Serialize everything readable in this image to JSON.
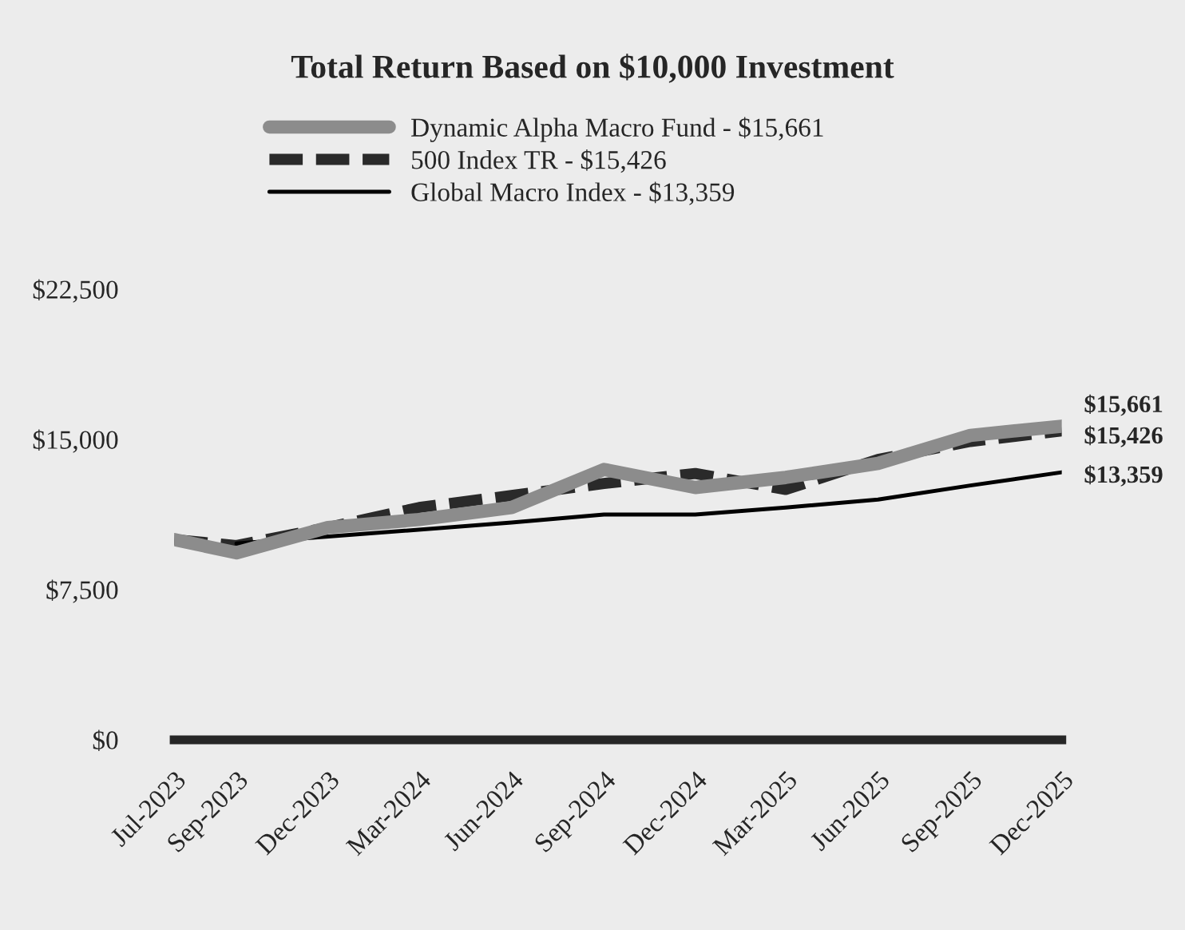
{
  "chart_data": {
    "type": "line",
    "title": "Total Return Based on $10,000 Investment",
    "x": [
      "2023-07",
      "2023-09",
      "2023-12",
      "2024-03",
      "2024-06",
      "2024-09",
      "2024-12",
      "2025-03",
      "2025-06",
      "2025-09",
      "2025-12"
    ],
    "series": [
      {
        "name": "Dynamic Alpha Macro Fund - $15,661",
        "color": "#8c8c8c",
        "line_style": "solid",
        "values": [
          10000,
          9340,
          10600,
          11000,
          11600,
          13500,
          12600,
          13100,
          13800,
          15200,
          15661
        ]
      },
      {
        "name": "500 Index TR - $15,426",
        "color": "#2a2a2a",
        "line_style": "dashed",
        "values": [
          10000,
          9700,
          10600,
          11600,
          12200,
          12800,
          13300,
          12500,
          14000,
          14900,
          15426
        ]
      },
      {
        "name": "Global Macro Index - $13,359",
        "color": "#000000",
        "line_style": "solid",
        "values": [
          null,
          9800,
          null,
          null,
          10850,
          11250,
          11250,
          11600,
          12000,
          12700,
          13359
        ]
      }
    ],
    "ylim": [
      0,
      22500
    ],
    "yticks": [
      {
        "value": 0,
        "label": "$0"
      },
      {
        "value": 7500,
        "label": "$7,500"
      },
      {
        "value": 15000,
        "label": "$15,000"
      },
      {
        "value": 22500,
        "label": "$22,500"
      }
    ],
    "xlim": [
      "2023-07",
      "2025-12"
    ],
    "xticks": [
      {
        "value": "2023-07",
        "label": "Jul-2023"
      },
      {
        "value": "2023-09",
        "label": "Sep-2023"
      },
      {
        "value": "2023-12",
        "label": "Dec-2023"
      },
      {
        "value": "2024-03",
        "label": "Mar-2024"
      },
      {
        "value": "2024-06",
        "label": "Jun-2024"
      },
      {
        "value": "2024-09",
        "label": "Sep-2024"
      },
      {
        "value": "2024-12",
        "label": "Dec-2024"
      },
      {
        "value": "2025-03",
        "label": "Mar-2025"
      },
      {
        "value": "2025-06",
        "label": "Jun-2025"
      },
      {
        "value": "2025-09",
        "label": "Sep-2025"
      },
      {
        "value": "2025-12",
        "label": "Dec-2025"
      }
    ],
    "annotations": [
      {
        "text": "$15,661",
        "x": "2025-12",
        "y": 15661
      },
      {
        "text": "$15,426",
        "x": "2025-12",
        "y": 15426
      },
      {
        "text": "$13,359",
        "x": "2025-12",
        "y": 13359
      }
    ],
    "legend": "top",
    "grid": false
  }
}
